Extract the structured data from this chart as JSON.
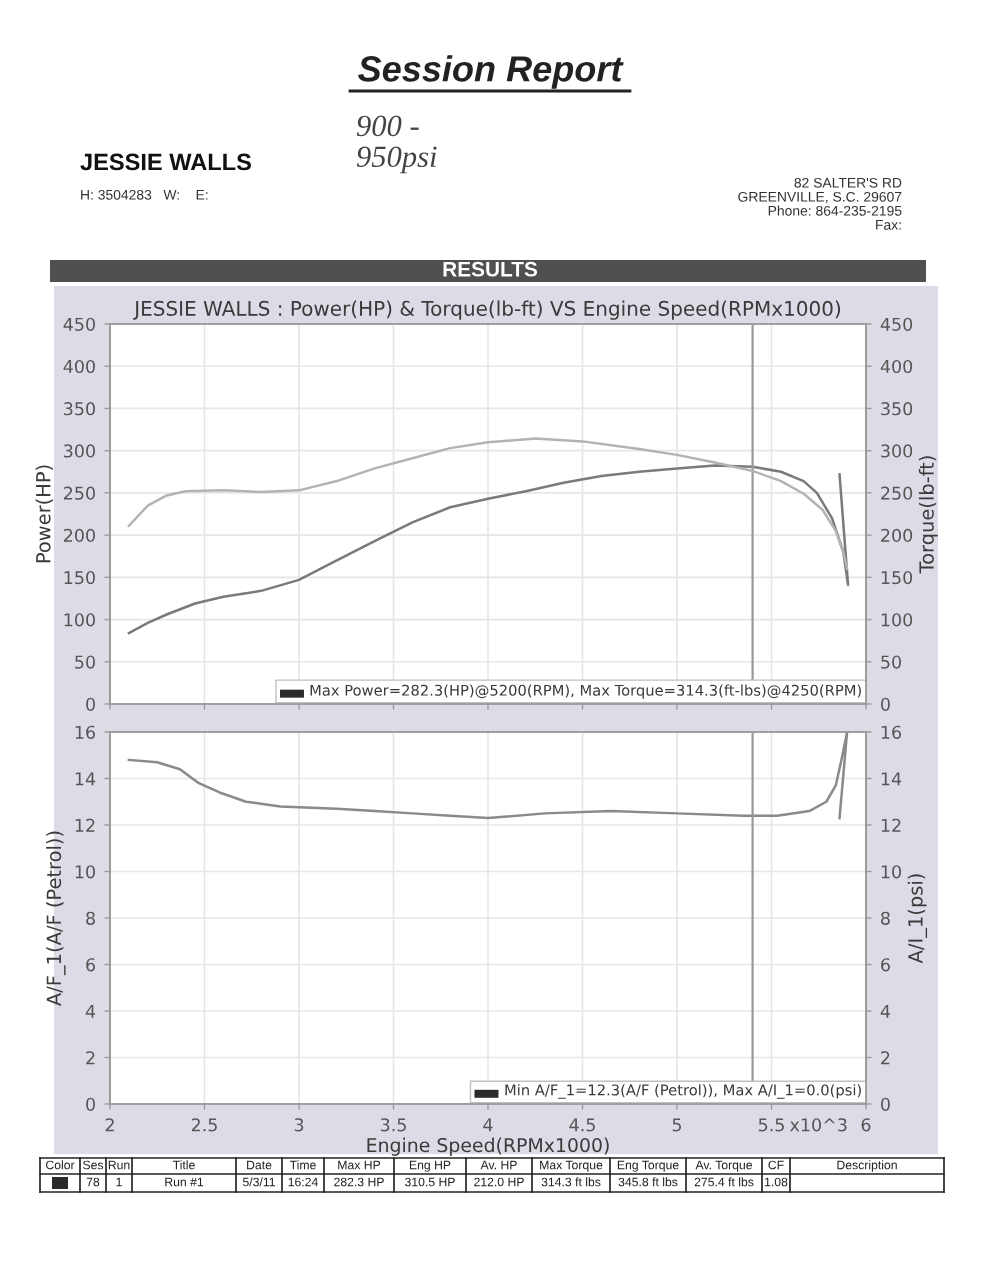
{
  "chart_data": [
    {
      "type": "other",
      "title": "Session Report",
      "annotations": [
        "900 -\n950psi",
        "JESSIE WALLS",
        "H: 3504283   W:    E:",
        "82 SALTER'S RD",
        "GREENVILLE, S.C. 29607",
        "Phone: 864-235-2195",
        "Fax:",
        "RESULTS"
      ]
    },
    {
      "type": "line",
      "title": "JESSIE WALLS : Power(HP) & Torque(lb-ft) VS Engine Speed(RPMx1000)",
      "ylabel": "Power(HP)",
      "y2label": "Torque(lb-ft)",
      "xlim": [
        2,
        6
      ],
      "xticks": [
        2,
        2.5,
        3,
        3.5,
        4,
        4.5,
        5,
        5.5,
        6
      ],
      "ylim": [
        0,
        450
      ],
      "yticks": [
        0,
        50,
        100,
        150,
        200,
        250,
        300,
        350,
        400,
        450
      ],
      "y2lim": [
        0,
        450
      ],
      "y2ticks": [
        0,
        50,
        100,
        150,
        200,
        250,
        300,
        350,
        400,
        450
      ],
      "tick_labels": "y",
      "grid": true,
      "series": [
        {
          "color": "#7a7a7a",
          "x": [
            2.1,
            2.2,
            2.3,
            2.45,
            2.6,
            2.8,
            3.0,
            3.2,
            3.4,
            3.6,
            3.8,
            4.0,
            4.2,
            4.4,
            4.6,
            4.8,
            5.0,
            5.2,
            5.4,
            5.55,
            5.67,
            5.74,
            5.82,
            5.88,
            5.905,
            5.86
          ],
          "values": [
            84,
            96,
            106,
            119,
            127,
            134,
            147,
            170,
            193,
            215,
            233,
            243,
            252,
            262,
            270,
            275,
            279,
            282.3,
            281,
            275,
            264,
            250,
            220,
            180,
            141,
            272
          ]
        },
        {
          "color": "#b3b3b3",
          "axis": "y2",
          "x": [
            2.1,
            2.2,
            2.3,
            2.4,
            2.6,
            2.8,
            3.0,
            3.2,
            3.4,
            3.6,
            3.8,
            4.0,
            4.25,
            4.5,
            4.8,
            5.0,
            5.2,
            5.4,
            5.55,
            5.67,
            5.77,
            5.84,
            5.88,
            5.9
          ],
          "values": [
            211,
            235,
            247,
            252,
            253,
            251,
            253,
            264,
            279,
            291,
            303,
            310,
            314.3,
            311,
            302,
            295,
            286,
            276,
            264,
            249,
            230,
            205,
            180,
            160
          ]
        }
      ],
      "ref_lines": [
        {
          "axis": "x",
          "value": 5.4,
          "color": "#9a9a9a"
        }
      ],
      "annotations": [
        "Max Power=282.3(HP)@5200(RPM), Max Torque=314.3(ft-lbs)@4250(RPM)"
      ]
    },
    {
      "type": "line",
      "xlabel": "Engine Speed(RPMx1000)",
      "ylabel": "A/F_1(A/F (Petrol))",
      "y2label": "A/I_1(psi)",
      "xlim": [
        2,
        6
      ],
      "xticks": [
        2,
        2.5,
        3,
        3.5,
        4,
        4.5,
        5,
        5.5,
        6
      ],
      "ylim": [
        0,
        16
      ],
      "yticks": [
        0,
        2,
        4,
        6,
        8,
        10,
        12,
        14,
        16
      ],
      "y2lim": [
        0,
        16
      ],
      "y2ticks": [
        0,
        2,
        4,
        6,
        8,
        10,
        12,
        14,
        16
      ],
      "grid": true,
      "series": [
        {
          "color": "#8a8a8a",
          "x": [
            2.1,
            2.25,
            2.37,
            2.47,
            2.58,
            2.72,
            2.9,
            3.2,
            3.4,
            3.6,
            3.8,
            4.0,
            4.3,
            4.65,
            5.0,
            5.35,
            5.53,
            5.7,
            5.79,
            5.84,
            5.87,
            5.9,
            5.86
          ],
          "values": [
            14.8,
            14.7,
            14.4,
            13.8,
            13.4,
            13.0,
            12.8,
            12.7,
            12.6,
            12.5,
            12.4,
            12.3,
            12.5,
            12.6,
            12.5,
            12.4,
            12.4,
            12.6,
            13.0,
            13.7,
            14.8,
            16.0,
            12.3
          ]
        }
      ],
      "ref_lines": [
        {
          "axis": "x",
          "value": 5.4,
          "color": "#9a9a9a"
        }
      ],
      "annotations": [
        "Min A/F_1=12.3(A/F (Petrol)), Max A/I_1=0.0(psi)",
        "x10^3"
      ]
    },
    {
      "type": "other",
      "categories": [
        "Color",
        "Ses",
        "Run",
        "Title",
        "Date",
        "Time",
        "Max HP",
        "Eng HP",
        "Av. HP",
        "Max Torque",
        "Eng Torque",
        "Av. Torque",
        "CF",
        "Description"
      ],
      "annotations": [
        "78",
        "1",
        "Run #1",
        "5/3/11",
        "16:24",
        "282.3 HP",
        "310.5 HP",
        "212.0 HP",
        "314.3 ft lbs",
        "345.8 ft lbs",
        "275.4 ft lbs",
        "1.08"
      ]
    }
  ]
}
